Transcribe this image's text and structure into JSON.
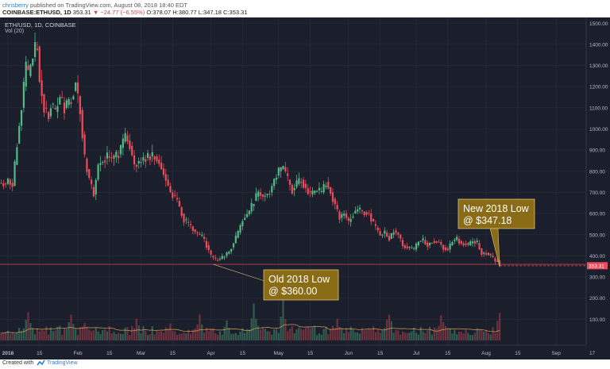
{
  "header": {
    "user": "chrisberry",
    "published": "published on TradingView.com, August 08, 2018 18:40 EDT",
    "symbol_line": "COINBASE:ETHUSD, 1D",
    "last": "353.31",
    "change": "▼ −24.77 (−6.55%)",
    "ohlc": "O:378.07 H:380.77 L:347.18 C:353.31"
  },
  "pair_label": "ETH/USD, 1D, COINBASE",
  "vol_label": "Vol (20)",
  "footer": {
    "created": "Created with",
    "brand": "TradingView"
  },
  "colors": {
    "bg": "#1b1e2b",
    "up": "#53b987",
    "down": "#eb4d5c",
    "grid": "#2a2e3c",
    "axis_text": "#b8bcc8",
    "callout": "#8a6c17",
    "ma": "#d6a25c"
  },
  "chart_data": {
    "type": "candlestick",
    "ylim": [
      0,
      1550
    ],
    "price_ticks": [
      1500,
      1400,
      1300,
      1200,
      1100,
      1000,
      900,
      800,
      700,
      600,
      500,
      400,
      300,
      200,
      100
    ],
    "x_ticks": [
      {
        "day": 1,
        "label": "2018"
      },
      {
        "day": 15,
        "label": "15"
      },
      {
        "day": 32,
        "label": "Feb"
      },
      {
        "day": 46,
        "label": "15"
      },
      {
        "day": 60,
        "label": "Mar"
      },
      {
        "day": 74,
        "label": "15"
      },
      {
        "day": 91,
        "label": "Apr"
      },
      {
        "day": 105,
        "label": "15"
      },
      {
        "day": 121,
        "label": "May"
      },
      {
        "day": 135,
        "label": "15"
      },
      {
        "day": 152,
        "label": "Jun"
      },
      {
        "day": 166,
        "label": "15"
      },
      {
        "day": 182,
        "label": "Jul"
      },
      {
        "day": 196,
        "label": "15"
      },
      {
        "day": 213,
        "label": "Aug"
      },
      {
        "day": 227,
        "label": "15"
      },
      {
        "day": 244,
        "label": "Sep"
      },
      {
        "day": 260,
        "label": "17"
      }
    ],
    "close_path": [
      [
        -3,
        745
      ],
      [
        0,
        740
      ],
      [
        1,
        760
      ],
      [
        3,
        730
      ],
      [
        5,
        930
      ],
      [
        7,
        1100
      ],
      [
        9,
        1300
      ],
      [
        10,
        1250
      ],
      [
        11,
        1300
      ],
      [
        13,
        1380
      ],
      [
        14,
        1390
      ],
      [
        15,
        1230
      ],
      [
        17,
        1100
      ],
      [
        19,
        1060
      ],
      [
        20,
        1120
      ],
      [
        22,
        1080
      ],
      [
        24,
        1150
      ],
      [
        26,
        1100
      ],
      [
        29,
        1140
      ],
      [
        31,
        1220
      ],
      [
        33,
        1090
      ],
      [
        35,
        860
      ],
      [
        37,
        760
      ],
      [
        39,
        690
      ],
      [
        41,
        830
      ],
      [
        43,
        850
      ],
      [
        45,
        870
      ],
      [
        47,
        860
      ],
      [
        50,
        880
      ],
      [
        53,
        970
      ],
      [
        55,
        920
      ],
      [
        57,
        830
      ],
      [
        60,
        850
      ],
      [
        63,
        870
      ],
      [
        66,
        870
      ],
      [
        68,
        840
      ],
      [
        71,
        760
      ],
      [
        73,
        700
      ],
      [
        76,
        660
      ],
      [
        79,
        570
      ],
      [
        82,
        540
      ],
      [
        84,
        510
      ],
      [
        87,
        490
      ],
      [
        89,
        450
      ],
      [
        91,
        400
      ],
      [
        93,
        380
      ],
      [
        95,
        385
      ],
      [
        97,
        400
      ],
      [
        99,
        420
      ],
      [
        101,
        460
      ],
      [
        103,
        510
      ],
      [
        105,
        570
      ],
      [
        108,
        610
      ],
      [
        110,
        660
      ],
      [
        112,
        700
      ],
      [
        114,
        680
      ],
      [
        117,
        700
      ],
      [
        119,
        760
      ],
      [
        121,
        800
      ],
      [
        123,
        820
      ],
      [
        125,
        760
      ],
      [
        127,
        710
      ],
      [
        129,
        740
      ],
      [
        131,
        760
      ],
      [
        133,
        720
      ],
      [
        135,
        690
      ],
      [
        138,
        710
      ],
      [
        140,
        700
      ],
      [
        142,
        750
      ],
      [
        144,
        700
      ],
      [
        146,
        640
      ],
      [
        148,
        580
      ],
      [
        150,
        600
      ],
      [
        152,
        560
      ],
      [
        154,
        600
      ],
      [
        156,
        620
      ],
      [
        158,
        610
      ],
      [
        161,
        600
      ],
      [
        163,
        550
      ],
      [
        166,
        500
      ],
      [
        168,
        510
      ],
      [
        170,
        480
      ],
      [
        172,
        520
      ],
      [
        174,
        500
      ],
      [
        176,
        450
      ],
      [
        178,
        440
      ],
      [
        181,
        430
      ],
      [
        183,
        470
      ],
      [
        185,
        475
      ],
      [
        187,
        450
      ],
      [
        189,
        470
      ],
      [
        192,
        465
      ],
      [
        194,
        440
      ],
      [
        196,
        430
      ],
      [
        198,
        470
      ],
      [
        200,
        480
      ],
      [
        202,
        460
      ],
      [
        205,
        450
      ],
      [
        207,
        470
      ],
      [
        209,
        460
      ],
      [
        211,
        410
      ],
      [
        213,
        415
      ],
      [
        215,
        400
      ],
      [
        217,
        378
      ],
      [
        219,
        353
      ]
    ],
    "volume_peaks": [
      {
        "day": 10,
        "value": 175
      },
      {
        "day": 29,
        "value": 150
      },
      {
        "day": 35,
        "value": 110
      },
      {
        "day": 58,
        "value": 125
      },
      {
        "day": 73,
        "value": 100
      },
      {
        "day": 86,
        "value": 170
      },
      {
        "day": 98,
        "value": 130
      },
      {
        "day": 110,
        "value": 240
      },
      {
        "day": 123,
        "value": 210
      },
      {
        "day": 147,
        "value": 110
      },
      {
        "day": 170,
        "value": 170
      },
      {
        "day": 193,
        "value": 160
      },
      {
        "day": 219,
        "value": 170
      }
    ],
    "current_price": {
      "value": 353.31,
      "label": "353.31"
    },
    "annotations": [
      {
        "text_line1": "Old 2018 Low",
        "text_line2": "@ $360.00",
        "point_day": 92,
        "point_value": 360
      },
      {
        "text_line1": "New 2018 Low",
        "text_line2": "@ $347.18",
        "point_day": 219,
        "point_value": 347.18
      }
    ]
  }
}
